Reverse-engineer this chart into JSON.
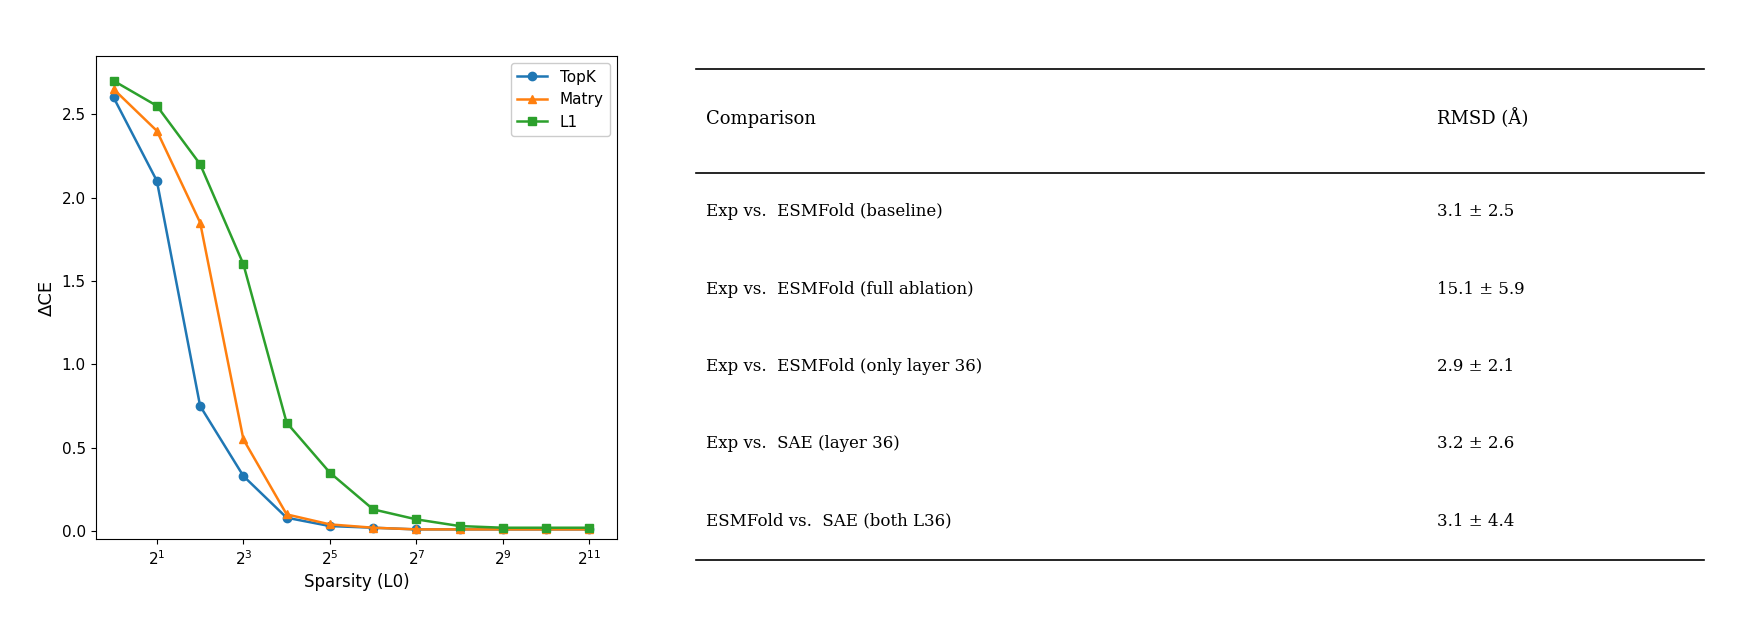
{
  "topk_x": [
    1,
    2,
    4,
    8,
    16,
    32,
    64,
    128,
    256,
    512,
    1024,
    2048
  ],
  "topk_y": [
    2.6,
    2.1,
    0.75,
    0.33,
    0.08,
    0.03,
    0.02,
    0.01,
    0.01,
    0.01,
    0.01,
    0.01
  ],
  "matry_x": [
    1,
    2,
    4,
    8,
    16,
    32,
    64,
    128,
    256,
    512,
    1024,
    2048
  ],
  "matry_y": [
    2.65,
    2.4,
    1.85,
    0.55,
    0.1,
    0.04,
    0.02,
    0.01,
    0.01,
    0.01,
    0.01,
    0.01
  ],
  "l1_x": [
    1,
    2,
    4,
    8,
    16,
    32,
    64,
    128,
    256,
    512,
    1024,
    2048
  ],
  "l1_y": [
    2.7,
    2.55,
    2.2,
    1.6,
    0.65,
    0.35,
    0.13,
    0.07,
    0.03,
    0.02,
    0.02,
    0.02
  ],
  "topk_color": "#1f77b4",
  "matry_color": "#ff7f0e",
  "l1_color": "#2ca02c",
  "xlabel": "Sparsity (L0)",
  "ylabel": "ΔCE",
  "topk_label": "TopK",
  "matry_label": "Matry",
  "l1_label": "L1",
  "table_header": [
    "Comparison",
    "RMSD (Å)"
  ],
  "table_rows": [
    [
      "Exp vs.  ESMFold (baseline)",
      "3.1 ± 2.5"
    ],
    [
      "Exp vs.  ESMFold (full ablation)",
      "15.1 ± 5.9"
    ],
    [
      "Exp vs.  ESMFold (only layer 36)",
      "2.9 ± 2.1"
    ],
    [
      "Exp vs.  SAE (layer 36)",
      "3.2 ± 2.6"
    ],
    [
      "ESMFold vs.  SAE (both L36)",
      "3.1 ± 4.4"
    ]
  ],
  "ytick_positions": [
    0.0,
    0.5,
    1.0,
    1.5,
    2.0,
    2.5
  ],
  "ylim": [
    -0.05,
    2.85
  ]
}
